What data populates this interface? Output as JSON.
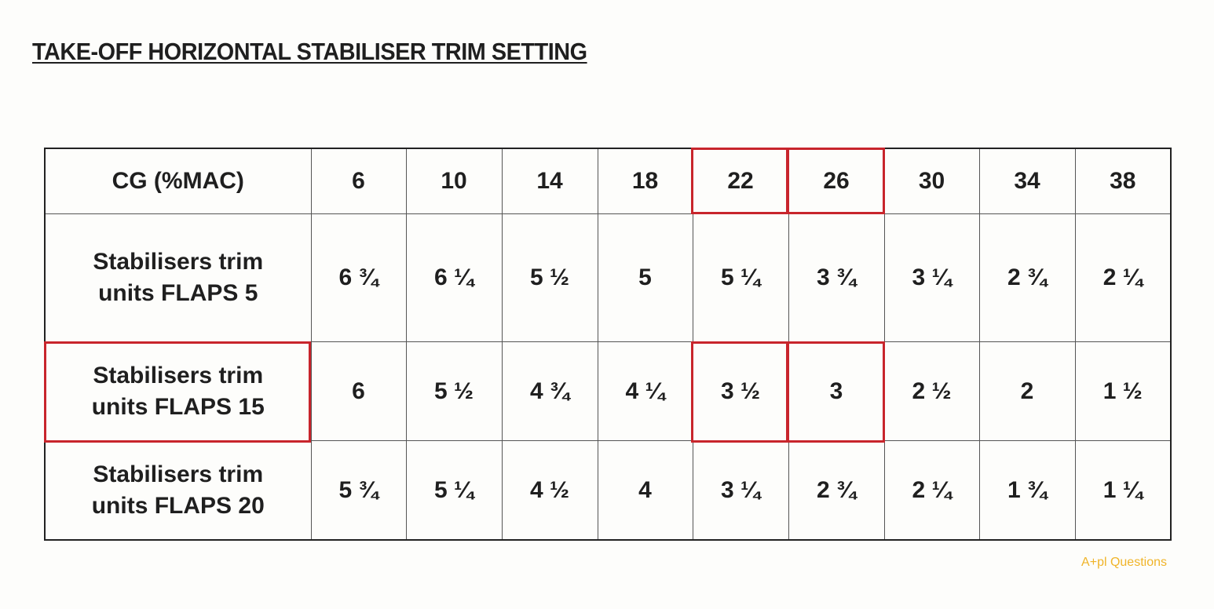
{
  "title": "TAKE-OFF HORIZONTAL STABILISER TRIM SETTING",
  "table": {
    "header": [
      "CG (%MAC)",
      "6",
      "10",
      "14",
      "18",
      "22",
      "26",
      "30",
      "34",
      "38"
    ],
    "rows": [
      {
        "label": [
          "Stabilisers trim",
          "units FLAPS 5"
        ],
        "values": [
          "6 ¾",
          "6 ¼",
          "5 ½",
          "5",
          "5 ¼",
          "3 ¾",
          "3 ¼",
          "2 ¾",
          "2 ¼"
        ]
      },
      {
        "label": [
          "Stabilisers trim",
          "units FLAPS 15"
        ],
        "values": [
          "6",
          "5 ½",
          "4 ¾",
          "4 ¼",
          "3 ½",
          "3",
          "2 ½",
          "2",
          "1 ½"
        ]
      },
      {
        "label": [
          "Stabilisers trim",
          "units FLAPS 20"
        ],
        "values": [
          "5 ¾",
          "5 ¼",
          "4 ½",
          "4",
          "3 ¼",
          "2 ¾",
          "2 ¼",
          "1 ¾",
          "1 ¼"
        ]
      }
    ]
  },
  "highlight_color": "#c8252c",
  "watermark": "A+pl Questions"
}
